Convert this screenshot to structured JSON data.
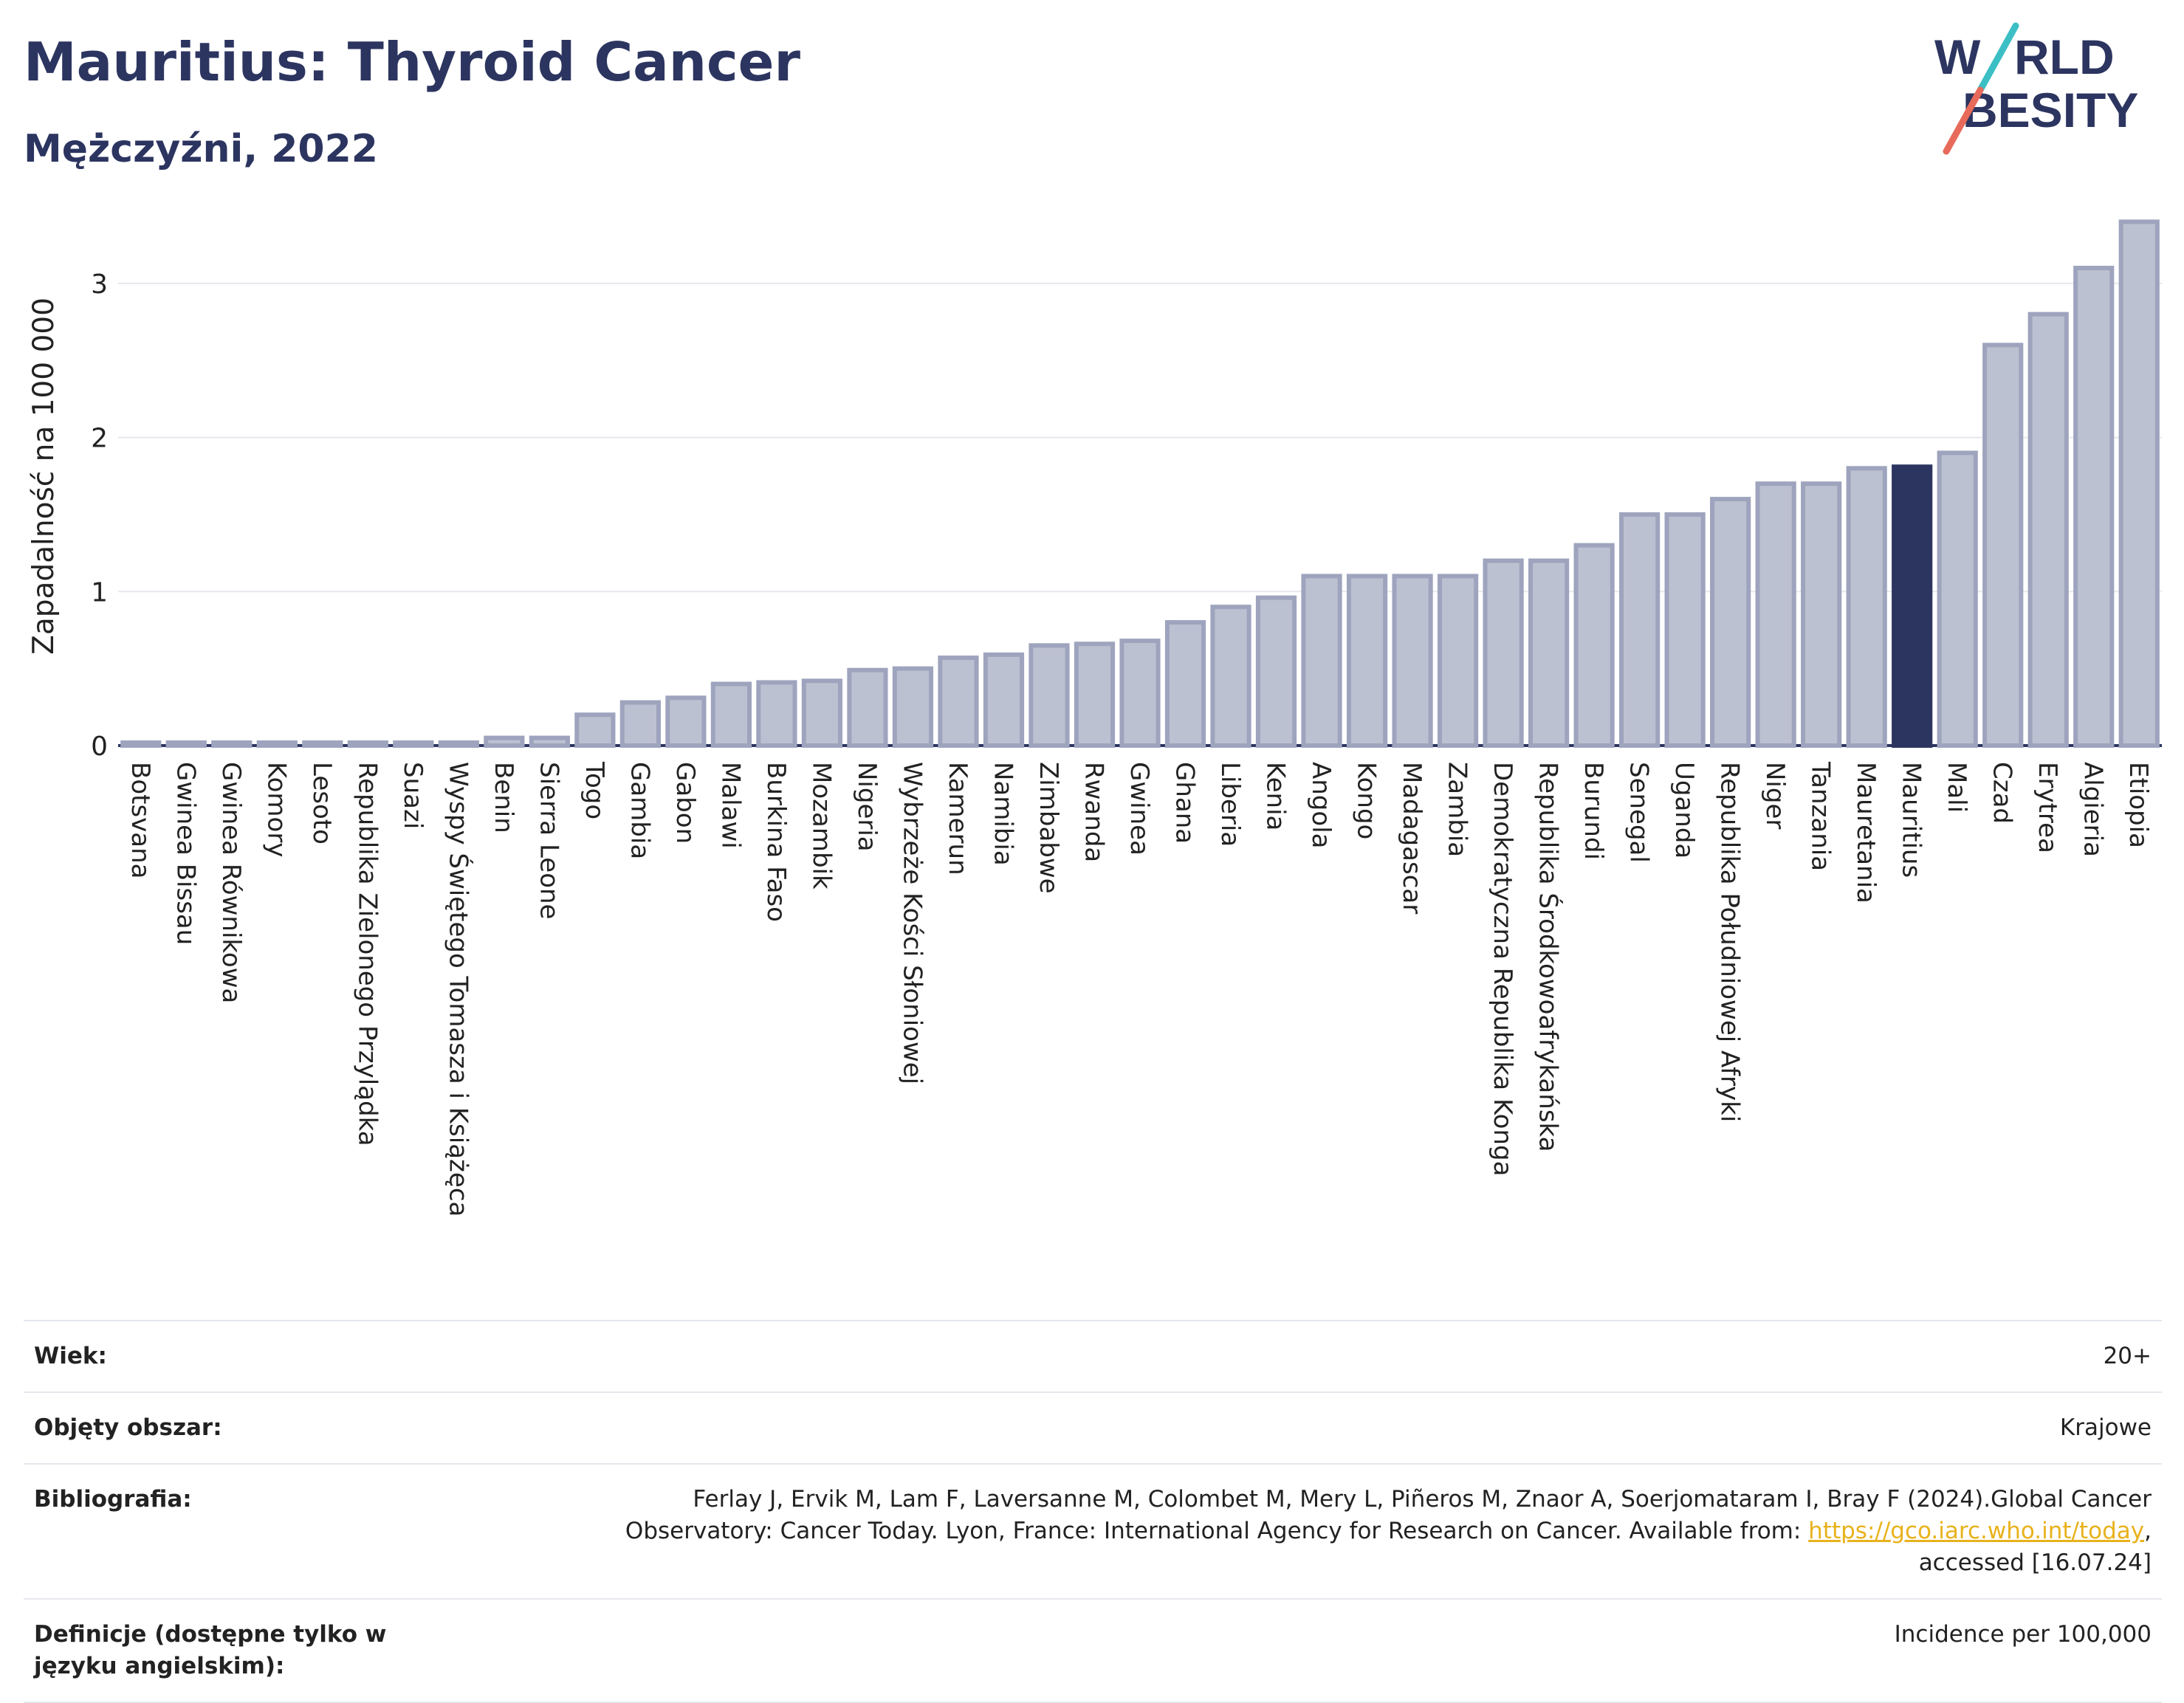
{
  "header": {
    "title": "Mauritius: Thyroid Cancer",
    "subtitle": "Mężczyźni, 2022"
  },
  "logo": {
    "line1": "WORLD",
    "line2": "OBESITY",
    "colors": {
      "text": "#2c3560",
      "slash_teal": "#3bbfc4",
      "slash_red": "#e86a5a"
    }
  },
  "colors": {
    "bar": "#bcc1d1",
    "bar_stroke": "#9ea4bd",
    "highlight": "#2c3560",
    "grid": "#e6e8ee",
    "axis": "#2c3560"
  },
  "chart_data": {
    "type": "bar",
    "ylabel": "Zapadalność na 100 000",
    "ylim": [
      0,
      3.45
    ],
    "yticks": [
      0,
      1,
      2,
      3
    ],
    "grid": true,
    "highlight": "Mauritius",
    "categories": [
      "Botsvana",
      "Gwinea Bissau",
      "Gwinea Równikowa",
      "Komory",
      "Lesoto",
      "Republika Zielonego Przylądka",
      "Suazi",
      "Wyspy Świętego Tomasza i Książęca",
      "Benin",
      "Sierra Leone",
      "Togo",
      "Gambia",
      "Gabon",
      "Malawi",
      "Burkina Faso",
      "Mozambik",
      "Nigeria",
      "Wybrzeże Kości Słoniowej",
      "Kamerun",
      "Namibia",
      "Zimbabwe",
      "Rwanda",
      "Gwinea",
      "Ghana",
      "Liberia",
      "Kenia",
      "Angola",
      "Kongo",
      "Madagascar",
      "Zambia",
      "Demokratyczna Republika Konga",
      "Republika Środkowoafrykańska",
      "Burundi",
      "Senegal",
      "Uganda",
      "Republika Południowej Afryki",
      "Niger",
      "Tanzania",
      "Mauretania",
      "Mauritius",
      "Mali",
      "Czad",
      "Erytrea",
      "Algieria",
      "Etiopia"
    ],
    "values": [
      0.01,
      0.01,
      0.01,
      0.01,
      0.01,
      0.01,
      0.01,
      0.01,
      0.05,
      0.05,
      0.2,
      0.28,
      0.31,
      0.4,
      0.41,
      0.42,
      0.49,
      0.5,
      0.57,
      0.59,
      0.65,
      0.66,
      0.68,
      0.8,
      0.9,
      0.96,
      1.1,
      1.1,
      1.1,
      1.1,
      1.2,
      1.2,
      1.3,
      1.5,
      1.5,
      1.6,
      1.7,
      1.7,
      1.8,
      1.81,
      1.9,
      2.6,
      2.8,
      3.1,
      3.4
    ]
  },
  "footer": {
    "rows": [
      {
        "key": "Wiek:",
        "value": "20+"
      },
      {
        "key": "Objęty obszar:",
        "value": "Krajowe"
      },
      {
        "key": "Bibliografia:",
        "value_line1": "Ferlay J, Ervik M, Lam F, Laversanne M, Colombet M, Mery L, Piñeros M, Znaor A, Soerjomataram I, Bray F (2024).Global Cancer",
        "value_line2_pre": "Observatory: Cancer Today. Lyon, France: International Agency for Research on Cancer. Available from: ",
        "value_link": "https://gco.iarc.who.int/today",
        "value_line2_post": ",",
        "value_line3": "accessed [16.07.24]"
      },
      {
        "key": "Definicje (dostępne tylko w języku angielskim):",
        "value": "Incidence per 100,000"
      }
    ]
  }
}
